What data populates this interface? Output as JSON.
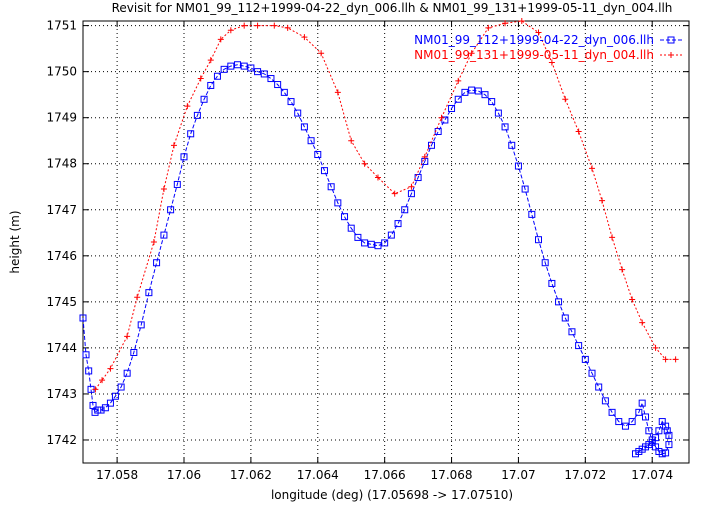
{
  "chart_data": {
    "type": "line",
    "title": "Revisit for NM01_99_112+1999-04-22_dyn_006.llh & NM01_99_131+1999-05-11_dyn_004.llh",
    "xlabel": "longitude (deg) (17.05698 -> 17.07510)",
    "ylabel": "height (m)",
    "xlim": [
      17.05698,
      17.0751
    ],
    "ylim": [
      1741.5,
      1751.1
    ],
    "xticks": [
      17.058,
      17.06,
      17.062,
      17.064,
      17.066,
      17.068,
      17.07,
      17.072,
      17.074
    ],
    "xtick_labels": [
      "17.058",
      "17.06",
      "17.062",
      "17.064",
      "17.066",
      "17.068",
      "17.07",
      "17.072",
      "17.074"
    ],
    "yticks": [
      1742,
      1743,
      1744,
      1745,
      1746,
      1747,
      1748,
      1749,
      1750,
      1751
    ],
    "ytick_labels": [
      "1742",
      "1743",
      "1744",
      "1745",
      "1746",
      "1747",
      "1748",
      "1749",
      "1750",
      "1751"
    ],
    "grid": true,
    "legend_position": "top-right",
    "series": [
      {
        "name": "NM01_99_112+1999-04-22_dyn_006.llh",
        "color": "#0000ff",
        "marker": "square",
        "line_style": "dash",
        "x": [
          17.05698,
          17.05707,
          17.05715,
          17.05722,
          17.05728,
          17.05734,
          17.05742,
          17.05752,
          17.05765,
          17.0578,
          17.05795,
          17.05812,
          17.0583,
          17.0585,
          17.05872,
          17.05895,
          17.05918,
          17.0594,
          17.0596,
          17.0598,
          17.06,
          17.0602,
          17.0604,
          17.0606,
          17.0608,
          17.061,
          17.0612,
          17.0614,
          17.0616,
          17.0618,
          17.062,
          17.0622,
          17.0624,
          17.0626,
          17.0628,
          17.063,
          17.0632,
          17.0634,
          17.0636,
          17.0638,
          17.064,
          17.0642,
          17.0644,
          17.0646,
          17.0648,
          17.065,
          17.0652,
          17.0654,
          17.0656,
          17.0658,
          17.066,
          17.0662,
          17.0664,
          17.0666,
          17.0668,
          17.067,
          17.0672,
          17.0674,
          17.0676,
          17.0678,
          17.068,
          17.0682,
          17.0684,
          17.0686,
          17.0688,
          17.069,
          17.0692,
          17.0694,
          17.0696,
          17.0698,
          17.07,
          17.0702,
          17.0704,
          17.0706,
          17.0708,
          17.071,
          17.0712,
          17.0714,
          17.0716,
          17.0718,
          17.072,
          17.0722,
          17.0724,
          17.0726,
          17.0728,
          17.073,
          17.0732,
          17.0734,
          17.0736,
          17.0737,
          17.0738,
          17.0739,
          17.074,
          17.0741,
          17.0742,
          17.0743,
          17.0744,
          17.0745,
          17.0745,
          17.07445,
          17.0744,
          17.0743,
          17.0742,
          17.0741,
          17.074,
          17.0739,
          17.0738,
          17.0737,
          17.0736,
          17.0735
        ],
        "y": [
          1744.65,
          1743.85,
          1743.5,
          1743.1,
          1742.75,
          1742.6,
          1742.65,
          1742.65,
          1742.7,
          1742.8,
          1742.95,
          1743.15,
          1743.45,
          1743.9,
          1744.5,
          1745.2,
          1745.85,
          1746.45,
          1747.0,
          1747.55,
          1748.15,
          1748.65,
          1749.05,
          1749.4,
          1749.7,
          1749.9,
          1750.05,
          1750.12,
          1750.15,
          1750.12,
          1750.08,
          1750.0,
          1749.95,
          1749.85,
          1749.72,
          1749.55,
          1749.35,
          1749.1,
          1748.8,
          1748.5,
          1748.2,
          1747.85,
          1747.5,
          1747.15,
          1746.85,
          1746.6,
          1746.4,
          1746.28,
          1746.25,
          1746.22,
          1746.28,
          1746.45,
          1746.7,
          1747.0,
          1747.35,
          1747.7,
          1748.05,
          1748.4,
          1748.7,
          1748.95,
          1749.2,
          1749.4,
          1749.55,
          1749.6,
          1749.58,
          1749.5,
          1749.35,
          1749.1,
          1748.8,
          1748.4,
          1747.95,
          1747.45,
          1746.9,
          1746.35,
          1745.85,
          1745.4,
          1745.0,
          1744.65,
          1744.35,
          1744.05,
          1743.75,
          1743.45,
          1743.15,
          1742.85,
          1742.6,
          1742.4,
          1742.3,
          1742.4,
          1742.6,
          1742.8,
          1742.5,
          1742.2,
          1742.0,
          1741.85,
          1741.75,
          1741.7,
          1741.72,
          1741.9,
          1742.1,
          1742.2,
          1742.3,
          1742.4,
          1742.2,
          1742.05,
          1741.95,
          1741.9,
          1741.85,
          1741.8,
          1741.75,
          1741.7
        ]
      },
      {
        "name": "NM01_99_131+1999-05-11_dyn_004.llh",
        "color": "#ff0000",
        "marker": "plus",
        "line_style": "dot",
        "x": [
          17.05735,
          17.05755,
          17.0578,
          17.0583,
          17.0586,
          17.0591,
          17.0594,
          17.0597,
          17.0601,
          17.0605,
          17.0608,
          17.0611,
          17.0614,
          17.0618,
          17.0622,
          17.0627,
          17.0631,
          17.0636,
          17.0641,
          17.0646,
          17.065,
          17.0654,
          17.0658,
          17.0663,
          17.0668,
          17.0672,
          17.0677,
          17.0682,
          17.0686,
          17.0691,
          17.0696,
          17.0701,
          17.0706,
          17.071,
          17.0714,
          17.0718,
          17.0722,
          17.0725,
          17.0728,
          17.0731,
          17.0734,
          17.0737,
          17.0741,
          17.0744,
          17.0747
        ],
        "y": [
          1743.1,
          1743.3,
          1743.55,
          1744.25,
          1745.1,
          1746.3,
          1747.45,
          1748.4,
          1749.25,
          1749.85,
          1750.25,
          1750.7,
          1750.9,
          1751.0,
          1751.0,
          1751.0,
          1750.95,
          1750.75,
          1750.4,
          1749.55,
          1748.5,
          1748.0,
          1747.7,
          1747.35,
          1747.5,
          1748.15,
          1749.0,
          1749.8,
          1750.4,
          1750.95,
          1751.05,
          1751.1,
          1750.85,
          1750.2,
          1749.4,
          1748.7,
          1747.9,
          1747.2,
          1746.4,
          1745.7,
          1745.05,
          1744.55,
          1744.0,
          1743.75,
          1743.75
        ]
      }
    ]
  }
}
